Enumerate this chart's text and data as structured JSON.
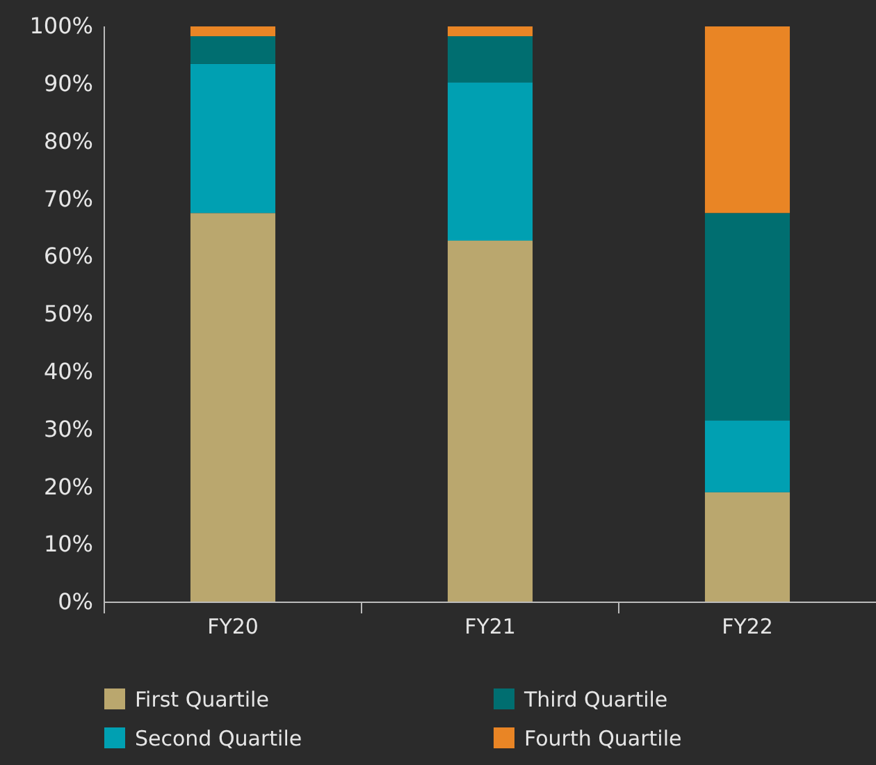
{
  "chart_data": {
    "type": "bar",
    "stacked": true,
    "categories": [
      "FY20",
      "FY21",
      "FY22"
    ],
    "series": [
      {
        "name": "First Quartile",
        "color": "#baa76e",
        "values": [
          67.6,
          62.8,
          19.1
        ]
      },
      {
        "name": "Second Quartile",
        "color": "#00a0b2",
        "values": [
          25.9,
          27.5,
          12.5
        ]
      },
      {
        "name": "Third Quartile",
        "color": "#006e70",
        "values": [
          4.8,
          8.0,
          36.0
        ]
      },
      {
        "name": "Fourth Quartile",
        "color": "#e98525",
        "values": [
          1.7,
          1.7,
          32.4
        ]
      }
    ],
    "ylim": [
      0,
      100
    ],
    "yticks": [
      {
        "value": 0,
        "label": "0%"
      },
      {
        "value": 10,
        "label": "10%"
      },
      {
        "value": 20,
        "label": "20%"
      },
      {
        "value": 30,
        "label": "30%"
      },
      {
        "value": 40,
        "label": "40%"
      },
      {
        "value": 50,
        "label": "50%"
      },
      {
        "value": 60,
        "label": "60%"
      },
      {
        "value": 70,
        "label": "70%"
      },
      {
        "value": 80,
        "label": "80%"
      },
      {
        "value": 90,
        "label": "90%"
      },
      {
        "value": 100,
        "label": "100%"
      }
    ],
    "grid": false,
    "legend": "bottom"
  }
}
